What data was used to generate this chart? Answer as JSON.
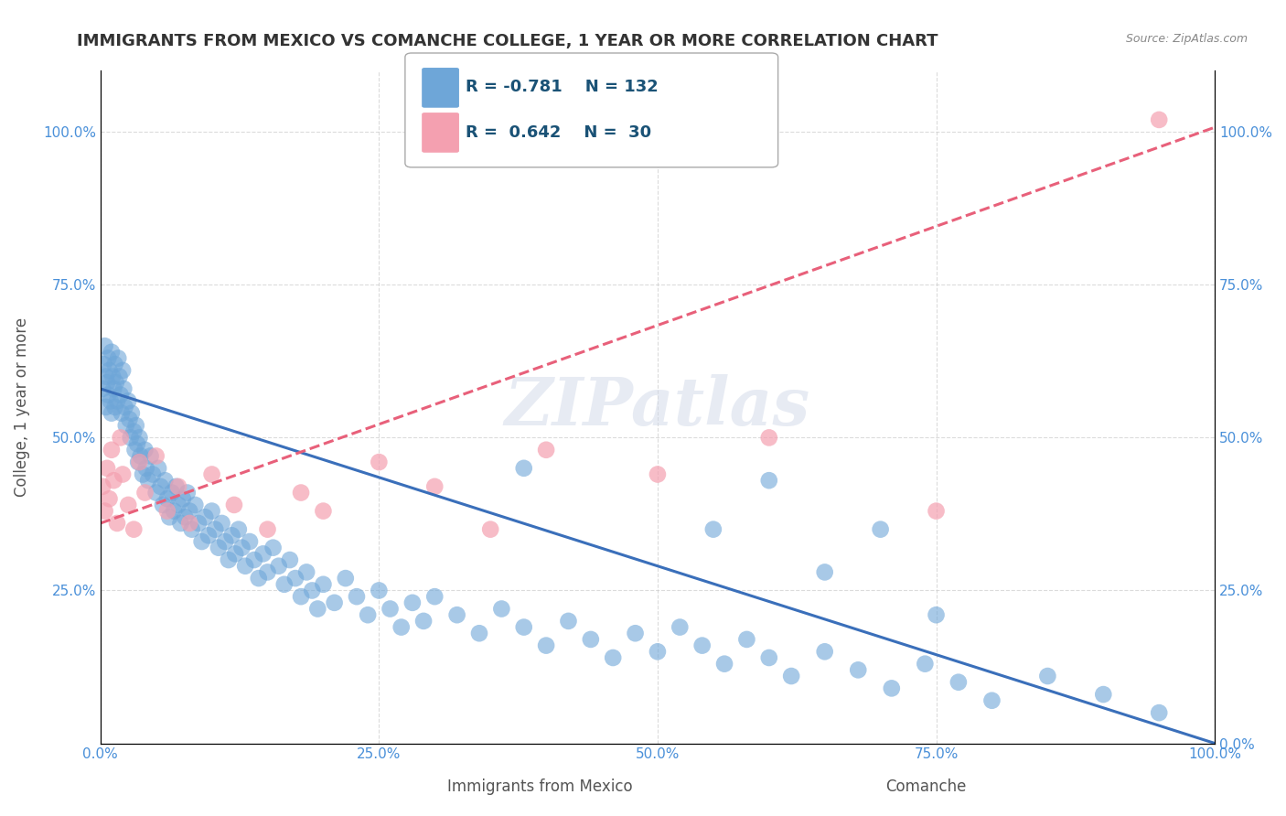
{
  "title": "IMMIGRANTS FROM MEXICO VS COMANCHE COLLEGE, 1 YEAR OR MORE CORRELATION CHART",
  "source": "Source: ZipAtlas.com",
  "xlabel_bottom": "Immigrants from Mexico",
  "xlabel_right_label": "Comanche",
  "ylabel": "College, 1 year or more",
  "watermark": "ZIPatlas",
  "blue_R": -0.781,
  "blue_N": 132,
  "pink_R": 0.642,
  "pink_N": 30,
  "blue_color": "#6ea6d8",
  "pink_color": "#f4a0b0",
  "blue_line_color": "#3a6fba",
  "pink_line_color": "#e8607a",
  "legend_box_color": "#d4e4f4",
  "legend_pink_box_color": "#f9c8d4",
  "blue_scatter_x": [
    0.002,
    0.003,
    0.004,
    0.005,
    0.005,
    0.006,
    0.007,
    0.007,
    0.008,
    0.009,
    0.01,
    0.01,
    0.011,
    0.012,
    0.013,
    0.013,
    0.014,
    0.015,
    0.016,
    0.017,
    0.018,
    0.019,
    0.02,
    0.021,
    0.022,
    0.023,
    0.025,
    0.026,
    0.027,
    0.028,
    0.03,
    0.031,
    0.032,
    0.033,
    0.034,
    0.035,
    0.036,
    0.038,
    0.04,
    0.041,
    0.043,
    0.045,
    0.047,
    0.05,
    0.052,
    0.054,
    0.056,
    0.058,
    0.06,
    0.062,
    0.064,
    0.066,
    0.068,
    0.07,
    0.072,
    0.074,
    0.076,
    0.078,
    0.08,
    0.082,
    0.085,
    0.088,
    0.091,
    0.094,
    0.097,
    0.1,
    0.103,
    0.106,
    0.109,
    0.112,
    0.115,
    0.118,
    0.121,
    0.124,
    0.127,
    0.13,
    0.134,
    0.138,
    0.142,
    0.146,
    0.15,
    0.155,
    0.16,
    0.165,
    0.17,
    0.175,
    0.18,
    0.185,
    0.19,
    0.195,
    0.2,
    0.21,
    0.22,
    0.23,
    0.24,
    0.25,
    0.26,
    0.27,
    0.28,
    0.29,
    0.3,
    0.32,
    0.34,
    0.36,
    0.38,
    0.4,
    0.42,
    0.44,
    0.46,
    0.48,
    0.5,
    0.52,
    0.54,
    0.56,
    0.58,
    0.6,
    0.62,
    0.65,
    0.68,
    0.71,
    0.74,
    0.77,
    0.8,
    0.85,
    0.9,
    0.95,
    0.6,
    0.7,
    0.75,
    0.38,
    0.65,
    0.55
  ],
  "blue_scatter_y": [
    0.58,
    0.62,
    0.65,
    0.6,
    0.55,
    0.59,
    0.63,
    0.57,
    0.61,
    0.56,
    0.64,
    0.54,
    0.6,
    0.58,
    0.62,
    0.55,
    0.59,
    0.56,
    0.63,
    0.6,
    0.57,
    0.54,
    0.61,
    0.58,
    0.55,
    0.52,
    0.56,
    0.53,
    0.5,
    0.54,
    0.51,
    0.48,
    0.52,
    0.49,
    0.46,
    0.5,
    0.47,
    0.44,
    0.48,
    0.45,
    0.43,
    0.47,
    0.44,
    0.41,
    0.45,
    0.42,
    0.39,
    0.43,
    0.4,
    0.37,
    0.41,
    0.38,
    0.42,
    0.39,
    0.36,
    0.4,
    0.37,
    0.41,
    0.38,
    0.35,
    0.39,
    0.36,
    0.33,
    0.37,
    0.34,
    0.38,
    0.35,
    0.32,
    0.36,
    0.33,
    0.3,
    0.34,
    0.31,
    0.35,
    0.32,
    0.29,
    0.33,
    0.3,
    0.27,
    0.31,
    0.28,
    0.32,
    0.29,
    0.26,
    0.3,
    0.27,
    0.24,
    0.28,
    0.25,
    0.22,
    0.26,
    0.23,
    0.27,
    0.24,
    0.21,
    0.25,
    0.22,
    0.19,
    0.23,
    0.2,
    0.24,
    0.21,
    0.18,
    0.22,
    0.19,
    0.16,
    0.2,
    0.17,
    0.14,
    0.18,
    0.15,
    0.19,
    0.16,
    0.13,
    0.17,
    0.14,
    0.11,
    0.15,
    0.12,
    0.09,
    0.13,
    0.1,
    0.07,
    0.11,
    0.08,
    0.05,
    0.43,
    0.35,
    0.21,
    0.45,
    0.28,
    0.35
  ],
  "pink_scatter_x": [
    0.002,
    0.004,
    0.006,
    0.008,
    0.01,
    0.012,
    0.015,
    0.018,
    0.02,
    0.025,
    0.03,
    0.035,
    0.04,
    0.05,
    0.06,
    0.07,
    0.08,
    0.1,
    0.12,
    0.15,
    0.18,
    0.2,
    0.25,
    0.3,
    0.35,
    0.4,
    0.5,
    0.6,
    0.75,
    0.95
  ],
  "pink_scatter_y": [
    0.42,
    0.38,
    0.45,
    0.4,
    0.48,
    0.43,
    0.36,
    0.5,
    0.44,
    0.39,
    0.35,
    0.46,
    0.41,
    0.47,
    0.38,
    0.42,
    0.36,
    0.44,
    0.39,
    0.35,
    0.41,
    0.38,
    0.46,
    0.42,
    0.35,
    0.48,
    0.44,
    0.5,
    0.38,
    1.02
  ],
  "xlim": [
    0.0,
    1.0
  ],
  "ylim": [
    0.0,
    1.1
  ],
  "ytick_labels": [
    "",
    "25.0%",
    "50.0%",
    "75.0%",
    "100.0%"
  ],
  "ytick_values": [
    0.0,
    0.25,
    0.5,
    0.75,
    1.0
  ],
  "xtick_labels": [
    "0.0%",
    "25.0%",
    "50.0%",
    "75.0%",
    "100.0%"
  ],
  "xtick_values": [
    0.0,
    0.25,
    0.5,
    0.75,
    1.0
  ],
  "right_ytick_labels": [
    "100.0%",
    "75.0%",
    "50.0%",
    "25.0%",
    "0.0%"
  ],
  "right_ytick_values": [
    1.0,
    0.75,
    0.5,
    0.25,
    0.0
  ],
  "grid_color": "#cccccc",
  "background_color": "#ffffff",
  "title_color": "#333333",
  "axis_label_color": "#555555",
  "tick_label_color": "#4a90d9",
  "watermark_color": "#d0d8e8",
  "legend_text_color": "#1a5276",
  "title_fontsize": 13,
  "axis_label_fontsize": 12,
  "tick_fontsize": 11,
  "legend_fontsize": 13,
  "watermark_fontsize": 52
}
